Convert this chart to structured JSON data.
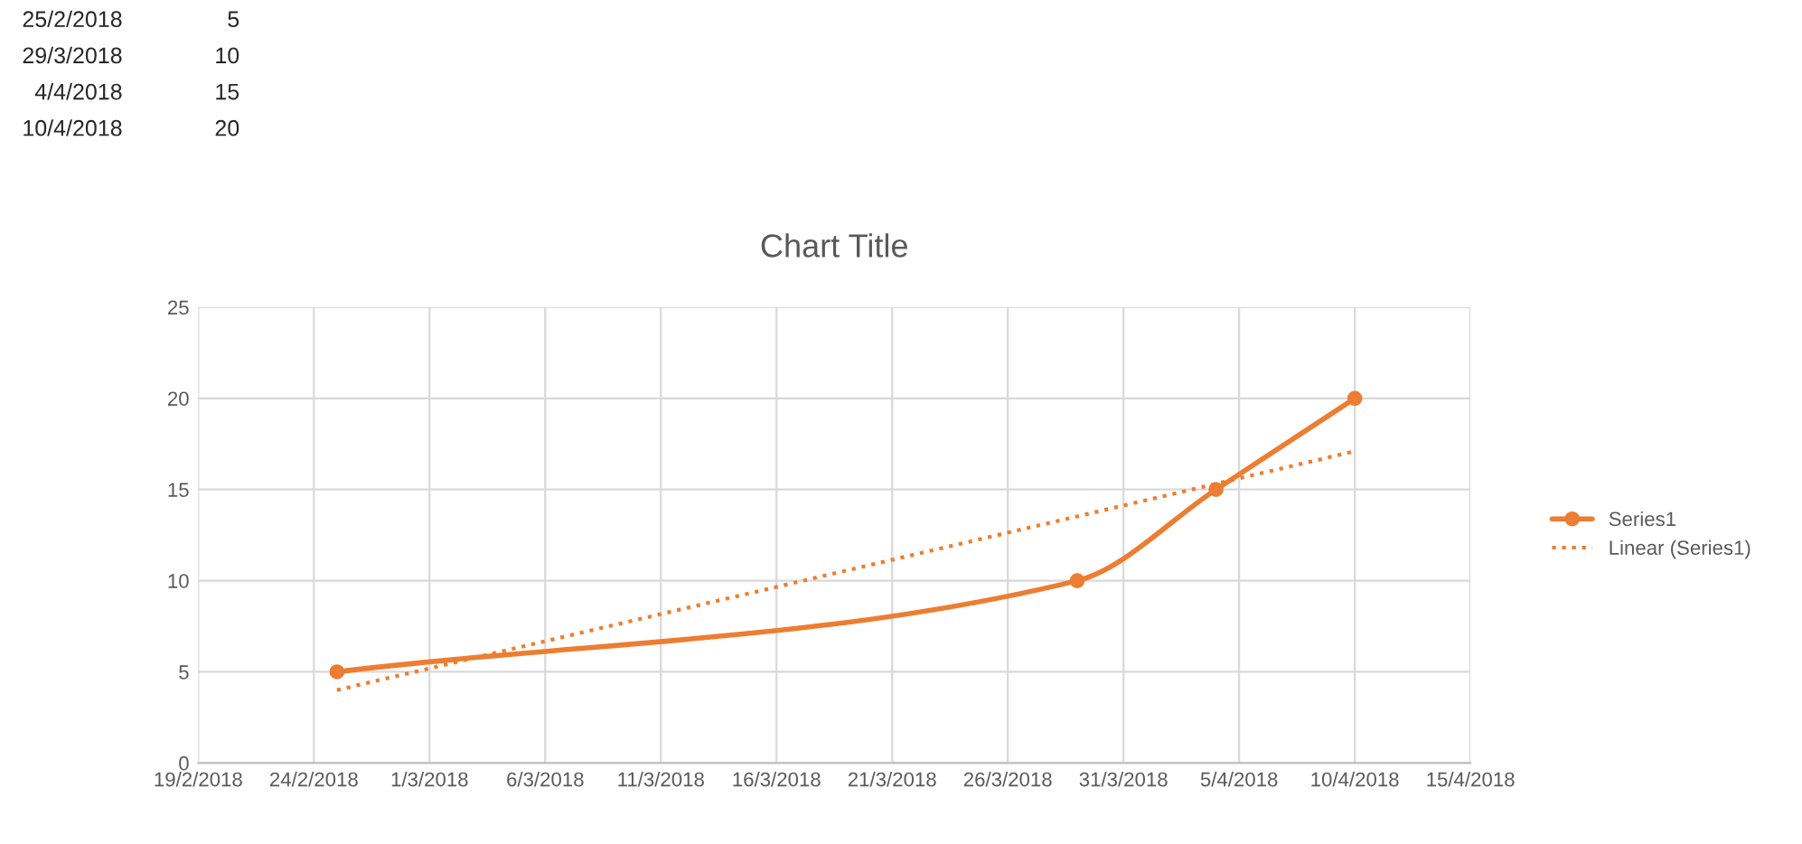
{
  "chart_data": {
    "type": "line",
    "title": "Chart Title",
    "annotations": [
      "25/2/2018",
      "5",
      "29/3/2018",
      "10",
      "4/4/2018",
      "15",
      "10/4/2018",
      "20"
    ],
    "x": [
      "2018-02-25",
      "2018-03-29",
      "2018-04-04",
      "2018-04-10"
    ],
    "series": [
      {
        "name": "Series1",
        "color": "#ed7d31",
        "values": [
          5,
          10,
          15,
          20
        ],
        "marker": "circle",
        "line_style": "solid"
      },
      {
        "name": "Linear (Series1)",
        "type": "line",
        "color": "#ed7d31",
        "x": [
          "2018-02-25",
          "2018-04-10"
        ],
        "values": [
          4.0,
          17.1
        ],
        "marker": "none",
        "line_style": "dotted"
      }
    ],
    "xlim": [
      "2018-02-19",
      "2018-04-15"
    ],
    "xticks": [
      {
        "value": "2018-02-19",
        "label": "19/2/2018"
      },
      {
        "value": "2018-02-24",
        "label": "24/2/2018"
      },
      {
        "value": "2018-03-01",
        "label": "1/3/2018"
      },
      {
        "value": "2018-03-06",
        "label": "6/3/2018"
      },
      {
        "value": "2018-03-11",
        "label": "11/3/2018"
      },
      {
        "value": "2018-03-16",
        "label": "16/3/2018"
      },
      {
        "value": "2018-03-21",
        "label": "21/3/2018"
      },
      {
        "value": "2018-03-26",
        "label": "26/3/2018"
      },
      {
        "value": "2018-03-31",
        "label": "31/3/2018"
      },
      {
        "value": "2018-04-05",
        "label": "5/4/2018"
      },
      {
        "value": "2018-04-10",
        "label": "10/4/2018"
      },
      {
        "value": "2018-04-15",
        "label": "15/4/2018"
      }
    ],
    "ylim": [
      0,
      25
    ],
    "yticks": [
      0,
      5,
      10,
      15,
      20,
      25
    ],
    "grid": true,
    "legend": "right"
  }
}
